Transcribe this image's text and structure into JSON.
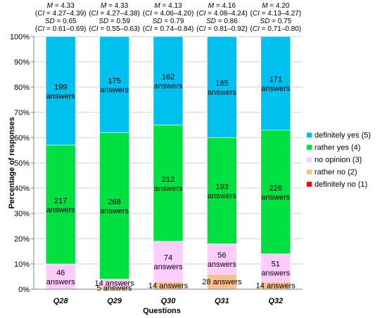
{
  "chart_data": {
    "type": "bar",
    "stacked": true,
    "xlabel": "Questions",
    "ylabel": "Percentage of responses",
    "ylim": [
      0,
      100
    ],
    "yticks": [
      "0%",
      "10%",
      "20%",
      "30%",
      "40%",
      "50%",
      "60%",
      "70%",
      "80%",
      "90%",
      "100%"
    ],
    "grid": true,
    "legend_position": "right",
    "categories": [
      "Q28",
      "Q29",
      "Q30",
      "Q31",
      "Q32"
    ],
    "series": [
      {
        "name": "definitely no (1)",
        "color": "#ff0000",
        "values": [
          0,
          0,
          0,
          0,
          0
        ],
        "labels": [
          "",
          "",
          "",
          "",
          ""
        ]
      },
      {
        "name": "rather no (2)",
        "color": "#fac090",
        "values": [
          0,
          1,
          3,
          6,
          3
        ],
        "labels": [
          "",
          "5 answers",
          "14 answers",
          "28 answers",
          "14 answers"
        ]
      },
      {
        "name": "no opinion (3)",
        "color": "#ffccff",
        "values": [
          10,
          3,
          16,
          12,
          11
        ],
        "labels": [
          "46 answers",
          "14 answers",
          "74 answers",
          "56 answers",
          "51 answers"
        ]
      },
      {
        "name": "rather yes (4)",
        "color": "#00e040",
        "values": [
          47,
          58,
          46,
          42,
          49
        ],
        "labels": [
          "217 answers",
          "268 answers",
          "212 answers",
          "193 answers",
          "226 answers"
        ]
      },
      {
        "name": "definitely yes (5)",
        "color": "#00c0f0",
        "values": [
          43,
          38,
          35,
          40,
          37
        ],
        "labels": [
          "199 answers",
          "175 answers",
          "162 answers",
          "185 answers",
          "171 answers"
        ]
      }
    ],
    "stats": [
      {
        "m": "M = 4.33",
        "ci_mean": "(CI = 4.27–4.39)",
        "sd": "SD = 0.65",
        "ci_sd": "(CI = 0.61–0.69)"
      },
      {
        "m": "M = 4.33",
        "ci_mean": "(CI = 4.27–4.38)",
        "sd": "SD = 0.59",
        "ci_sd": "(CI = 0.55–0.63)"
      },
      {
        "m": "M = 4.13",
        "ci_mean": "(CI = 4.06–4.20)",
        "sd": "SD = 0.79",
        "ci_sd": "(CI = 0.74–0.84)"
      },
      {
        "m": "M = 4.16",
        "ci_mean": "(CI = 4.08–4.24)",
        "sd": "SD = 0.86",
        "ci_sd": "(CI = 0.81–0.92)"
      },
      {
        "m": "M = 4.20",
        "ci_mean": "(CI = 4.13–4.27)",
        "sd": "SD = 0.75",
        "ci_sd": "(CI = 0.71–0.80)"
      }
    ]
  }
}
